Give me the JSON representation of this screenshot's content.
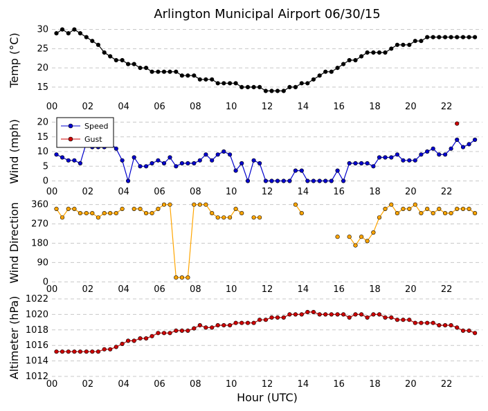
{
  "chart_data": {
    "title": "Arlington Municipal Airport 06/30/15",
    "xlabel": "Hour (UTC)",
    "x_ticks": [
      "00",
      "02",
      "04",
      "06",
      "08",
      "10",
      "12",
      "14",
      "16",
      "18",
      "20",
      "22"
    ],
    "xlim": [
      0,
      24
    ],
    "panels": [
      {
        "type": "line",
        "ylabel": "Temp (°C)",
        "ylim": [
          13,
          31
        ],
        "y_ticks": [
          15,
          20,
          25,
          30
        ],
        "grid": true,
        "series": [
          {
            "name": "Temp",
            "color": "#000000",
            "x": [
              0.25,
              0.58,
              0.92,
              1.25,
              1.58,
              1.92,
              2.25,
              2.58,
              2.92,
              3.25,
              3.58,
              3.92,
              4.25,
              4.58,
              4.92,
              5.25,
              5.58,
              5.92,
              6.25,
              6.58,
              6.92,
              7.25,
              7.58,
              7.92,
              8.25,
              8.58,
              8.92,
              9.25,
              9.58,
              9.92,
              10.25,
              10.58,
              10.92,
              11.25,
              11.58,
              11.92,
              12.25,
              12.58,
              12.92,
              13.25,
              13.58,
              13.92,
              14.25,
              14.58,
              14.92,
              15.25,
              15.58,
              15.92,
              16.25,
              16.58,
              16.92,
              17.25,
              17.58,
              17.92,
              18.25,
              18.58,
              18.92,
              19.25,
              19.58,
              19.92,
              20.25,
              20.58,
              20.92,
              21.25,
              21.58,
              21.92,
              22.25,
              22.58,
              22.92,
              23.25,
              23.58
            ],
            "y": [
              29,
              30,
              29,
              30,
              29,
              28,
              27,
              26,
              24,
              23,
              22,
              22,
              21,
              21,
              20,
              20,
              19,
              19,
              19,
              19,
              19,
              18,
              18,
              18,
              17,
              17,
              17,
              16,
              16,
              16,
              16,
              15,
              15,
              15,
              15,
              14,
              14,
              14,
              14,
              15,
              15,
              16,
              16,
              17,
              18,
              19,
              19,
              20,
              21,
              22,
              22,
              23,
              24,
              24,
              24,
              24,
              25,
              26,
              26,
              26,
              27,
              27,
              28,
              28,
              28,
              28,
              28,
              28,
              28,
              28,
              28
            ]
          }
        ]
      },
      {
        "type": "line",
        "ylabel": "Wind (mph)",
        "ylim": [
          -2,
          22
        ],
        "y_ticks": [
          0,
          5,
          10,
          15,
          20
        ],
        "grid": true,
        "legend": "top-left",
        "series": [
          {
            "name": "Speed",
            "color": "#0000cc",
            "x": [
              0.25,
              0.58,
              0.92,
              1.25,
              1.58,
              1.92,
              2.25,
              2.58,
              2.92,
              3.25,
              3.58,
              3.92,
              4.25,
              4.58,
              4.92,
              5.25,
              5.58,
              5.92,
              6.25,
              6.58,
              6.92,
              7.25,
              7.58,
              7.92,
              8.25,
              8.58,
              8.92,
              9.25,
              9.58,
              9.92,
              10.25,
              10.58,
              10.92,
              11.25,
              11.58,
              11.92,
              12.25,
              12.58,
              12.92,
              13.25,
              13.58,
              13.92,
              14.25,
              14.58,
              14.92,
              15.25,
              15.58,
              15.92,
              16.25,
              16.58,
              16.92,
              17.25,
              17.58,
              17.92,
              18.25,
              18.58,
              18.92,
              19.25,
              19.58,
              19.92,
              20.25,
              20.58,
              20.92,
              21.25,
              21.58,
              21.92,
              22.25,
              22.58,
              22.92,
              23.25,
              23.58
            ],
            "y": [
              9,
              8,
              7,
              7,
              6,
              13,
              11.5,
              11.5,
              11.5,
              13,
              11,
              7,
              0,
              8,
              5,
              5,
              6,
              7,
              6,
              8,
              5,
              6,
              6,
              6,
              7,
              9,
              7,
              9,
              10,
              9,
              3.5,
              6,
              0,
              7,
              6,
              0,
              0,
              0,
              0,
              0,
              3.5,
              3.5,
              0,
              0,
              0,
              0,
              0,
              3.5,
              0,
              6,
              6,
              6,
              6,
              5,
              8,
              8,
              8,
              9,
              7,
              7,
              7,
              9,
              10,
              11,
              9,
              9,
              11,
              14,
              11.5,
              12.5,
              14
            ]
          },
          {
            "name": "Gust",
            "color": "#cc0000",
            "x": [
              22.58
            ],
            "y": [
              19.5
            ]
          }
        ]
      },
      {
        "type": "line",
        "ylabel": "Wind Direction",
        "ylim": [
          -15,
          375
        ],
        "y_ticks": [
          0,
          90,
          180,
          270,
          360
        ],
        "grid": true,
        "series": [
          {
            "name": "Direction",
            "color": "#ffa500",
            "x": [
              0.25,
              0.58,
              0.92,
              1.25,
              1.58,
              1.92,
              2.25,
              2.58,
              2.92,
              3.25,
              3.58,
              3.92,
              null,
              4.58,
              4.92,
              5.25,
              5.58,
              5.92,
              6.25,
              6.58,
              6.92,
              7.25,
              7.58,
              7.92,
              8.25,
              8.58,
              8.92,
              9.25,
              9.58,
              9.92,
              10.25,
              10.58,
              null,
              11.25,
              11.58,
              null,
              13.58,
              13.92,
              null,
              15.92,
              null,
              16.58,
              16.92,
              17.25,
              17.58,
              17.92,
              18.25,
              18.58,
              18.92,
              19.25,
              19.58,
              19.92,
              20.25,
              20.58,
              20.92,
              21.25,
              21.58,
              21.92,
              22.25,
              22.58,
              22.92,
              23.25,
              23.58
            ],
            "y": [
              340,
              300,
              340,
              340,
              320,
              320,
              320,
              300,
              320,
              320,
              320,
              340,
              null,
              340,
              340,
              320,
              320,
              340,
              360,
              360,
              20,
              20,
              20,
              360,
              360,
              360,
              320,
              300,
              300,
              300,
              340,
              320,
              null,
              300,
              300,
              null,
              360,
              320,
              null,
              210,
              null,
              210,
              170,
              210,
              190,
              230,
              300,
              340,
              360,
              320,
              340,
              340,
              360,
              320,
              340,
              320,
              340,
              320,
              320,
              340,
              340,
              340,
              320
            ]
          }
        ]
      },
      {
        "type": "line",
        "ylabel": "Altimeter (hPa)",
        "ylim": [
          1012,
          1022
        ],
        "y_ticks": [
          1012,
          1014,
          1016,
          1018,
          1020,
          1022
        ],
        "grid": true,
        "series": [
          {
            "name": "Altimeter",
            "color": "#cc0000",
            "x": [
              0.25,
              0.58,
              0.92,
              1.25,
              1.58,
              1.92,
              2.25,
              2.58,
              2.92,
              3.25,
              3.58,
              3.92,
              4.25,
              4.58,
              4.92,
              5.25,
              5.58,
              5.92,
              6.25,
              6.58,
              6.92,
              7.25,
              7.58,
              7.92,
              8.25,
              8.58,
              8.92,
              9.25,
              9.58,
              9.92,
              10.25,
              10.58,
              10.92,
              11.25,
              11.58,
              11.92,
              12.25,
              12.58,
              12.92,
              13.25,
              13.58,
              13.92,
              14.25,
              14.58,
              14.92,
              15.25,
              15.58,
              15.92,
              16.25,
              16.58,
              16.92,
              17.25,
              17.58,
              17.92,
              18.25,
              18.58,
              18.92,
              19.25,
              19.58,
              19.92,
              20.25,
              20.58,
              20.92,
              21.25,
              21.58,
              21.92,
              22.25,
              22.58,
              22.92,
              23.25,
              23.58
            ],
            "y": [
              1015.2,
              1015.2,
              1015.2,
              1015.2,
              1015.2,
              1015.2,
              1015.2,
              1015.2,
              1015.5,
              1015.5,
              1015.8,
              1016.2,
              1016.6,
              1016.6,
              1016.9,
              1016.9,
              1017.2,
              1017.6,
              1017.6,
              1017.6,
              1017.9,
              1017.9,
              1017.9,
              1018.2,
              1018.6,
              1018.3,
              1018.3,
              1018.6,
              1018.6,
              1018.6,
              1018.9,
              1018.9,
              1018.9,
              1018.9,
              1019.3,
              1019.3,
              1019.6,
              1019.6,
              1019.6,
              1020.0,
              1020.0,
              1020.0,
              1020.3,
              1020.3,
              1020.0,
              1020.0,
              1020.0,
              1020.0,
              1020.0,
              1019.6,
              1020.0,
              1020.0,
              1019.6,
              1020.0,
              1020.0,
              1019.6,
              1019.6,
              1019.3,
              1019.3,
              1019.3,
              1018.9,
              1018.9,
              1018.9,
              1018.9,
              1018.6,
              1018.6,
              1018.6,
              1018.3,
              1017.9,
              1017.9,
              1017.6
            ]
          }
        ]
      }
    ]
  }
}
